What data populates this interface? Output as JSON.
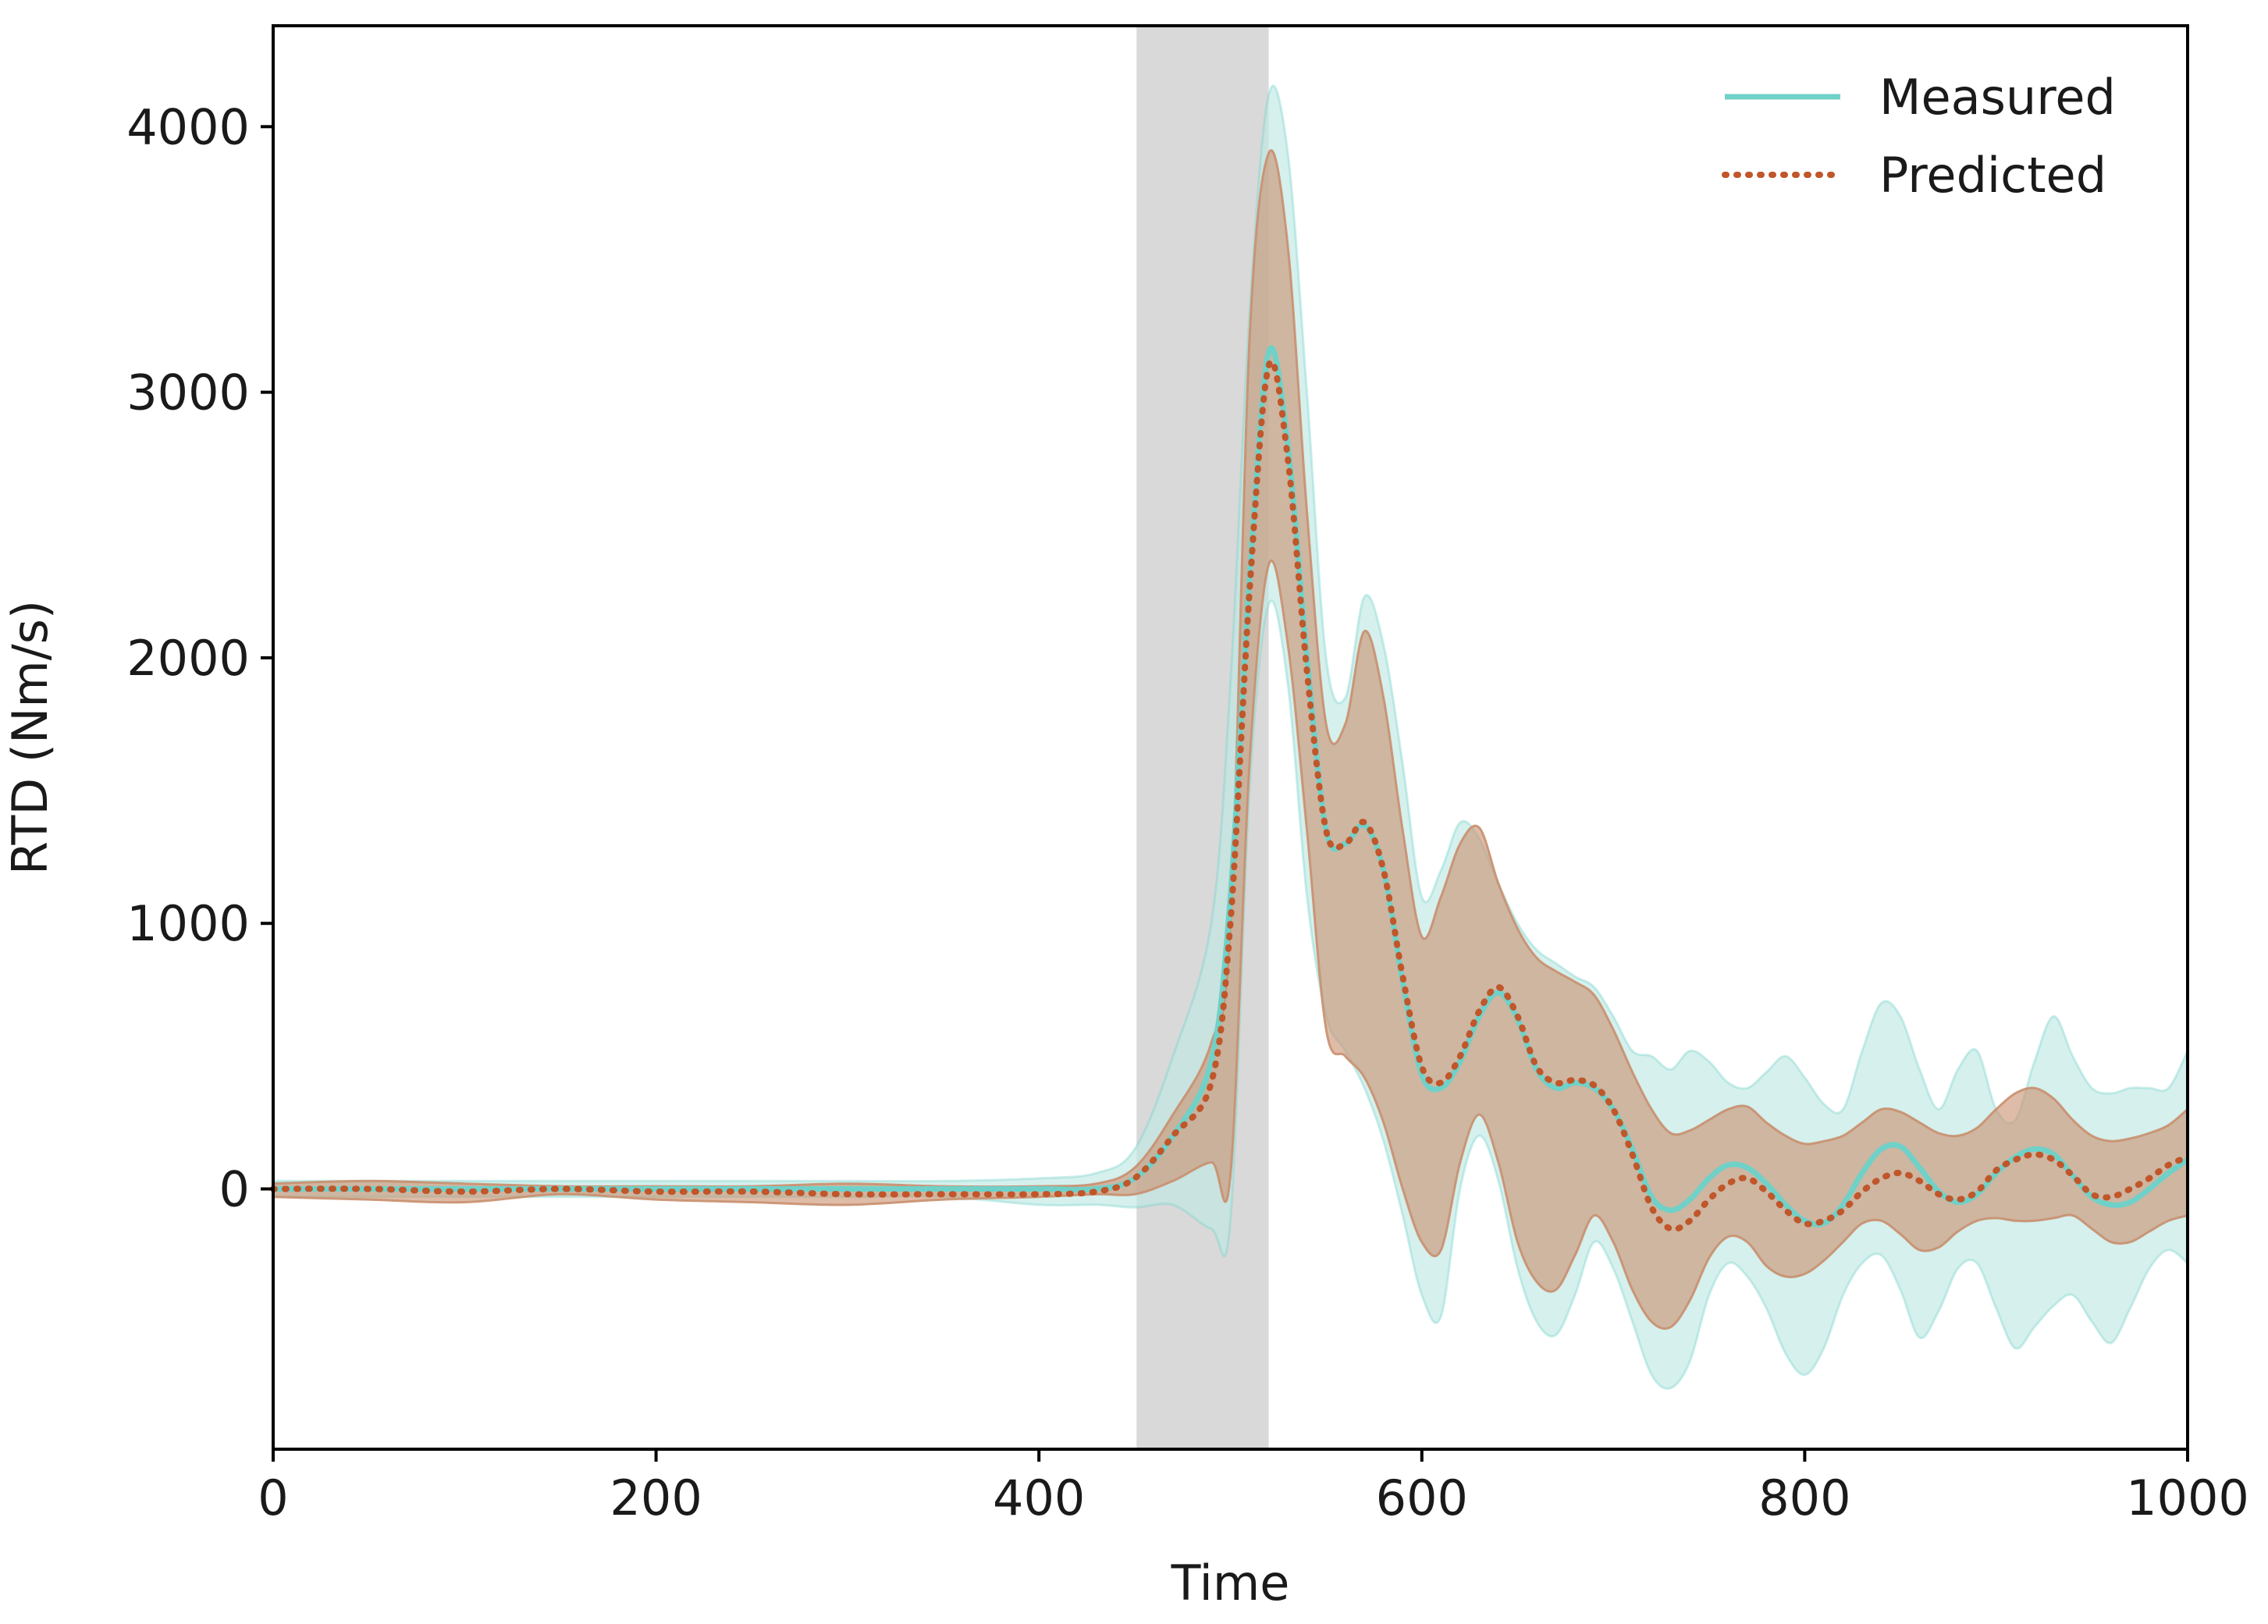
{
  "chart_data": {
    "type": "line",
    "title": "",
    "xlabel": "Time",
    "ylabel": "RTD (Nm/s)",
    "xlim": [
      0,
      1000
    ],
    "ylim": [
      -980,
      4380
    ],
    "xticks": [
      0,
      200,
      400,
      600,
      800,
      1000
    ],
    "yticks": [
      0,
      1000,
      2000,
      3000,
      4000
    ],
    "grid": false,
    "legend_position": "top-right",
    "shaded_span": {
      "x_start": 451,
      "x_end": 520,
      "color": "#d9d9d9"
    },
    "colors": {
      "measured": "#6fd1c8",
      "measured_band": "#bfe8e4",
      "predicted": "#c0562a",
      "predicted_band": "#c98f6e",
      "axes": "#000000"
    },
    "series": [
      {
        "name": "Measured",
        "style": "solid",
        "x": [
          0,
          50,
          100,
          150,
          200,
          250,
          300,
          350,
          400,
          430,
          450,
          470,
          490,
          500,
          510,
          520,
          530,
          540,
          550,
          560,
          570,
          580,
          590,
          600,
          610,
          620,
          630,
          640,
          650,
          660,
          670,
          680,
          690,
          700,
          710,
          720,
          730,
          740,
          750,
          760,
          770,
          780,
          790,
          800,
          810,
          820,
          830,
          840,
          850,
          860,
          870,
          880,
          890,
          900,
          910,
          920,
          930,
          940,
          950,
          960,
          970,
          980,
          990,
          1000
        ],
        "y": [
          0,
          0,
          0,
          0,
          0,
          0,
          0,
          0,
          0,
          0,
          40,
          200,
          480,
          1100,
          2300,
          3150,
          2800,
          2000,
          1350,
          1300,
          1370,
          1200,
          780,
          430,
          380,
          480,
          650,
          740,
          640,
          450,
          380,
          400,
          380,
          300,
          150,
          -30,
          -80,
          -40,
          40,
          90,
          80,
          20,
          -60,
          -120,
          -130,
          -60,
          60,
          150,
          160,
          80,
          -10,
          -50,
          -20,
          60,
          120,
          150,
          130,
          50,
          -30,
          -60,
          -50,
          0,
          60,
          110
        ],
        "band_upper": [
          30,
          30,
          30,
          30,
          30,
          30,
          30,
          30,
          40,
          60,
          150,
          500,
          1000,
          1900,
          3300,
          4120,
          3900,
          3000,
          2000,
          1850,
          2230,
          2050,
          1600,
          1100,
          1200,
          1380,
          1320,
          1150,
          1000,
          900,
          850,
          800,
          760,
          650,
          520,
          500,
          450,
          520,
          480,
          400,
          380,
          440,
          500,
          420,
          320,
          300,
          520,
          700,
          650,
          450,
          300,
          450,
          520,
          300,
          260,
          480,
          650,
          500,
          380,
          360,
          380,
          380,
          380,
          520
        ],
        "band_lower": [
          -30,
          -30,
          -30,
          -30,
          -30,
          -30,
          -30,
          -30,
          -60,
          -60,
          -70,
          -60,
          -150,
          -120,
          1500,
          2200,
          1900,
          1100,
          650,
          520,
          380,
          180,
          -100,
          -400,
          -480,
          0,
          200,
          30,
          -300,
          -500,
          -550,
          -400,
          -200,
          -300,
          -500,
          -700,
          -750,
          -650,
          -400,
          -280,
          -330,
          -450,
          -620,
          -700,
          -600,
          -400,
          -280,
          -250,
          -380,
          -560,
          -460,
          -300,
          -280,
          -450,
          -600,
          -520,
          -440,
          -400,
          -500,
          -580,
          -450,
          -300,
          -230,
          -280
        ]
      },
      {
        "name": "Predicted",
        "style": "dotted",
        "x": [
          0,
          50,
          100,
          150,
          200,
          250,
          300,
          350,
          400,
          430,
          450,
          470,
          490,
          500,
          510,
          520,
          530,
          540,
          550,
          560,
          570,
          580,
          590,
          600,
          610,
          620,
          630,
          640,
          650,
          660,
          670,
          680,
          690,
          700,
          710,
          720,
          730,
          740,
          750,
          760,
          770,
          780,
          790,
          800,
          810,
          820,
          830,
          840,
          850,
          860,
          870,
          880,
          890,
          900,
          910,
          920,
          930,
          940,
          950,
          960,
          970,
          980,
          990,
          1000
        ],
        "y": [
          0,
          0,
          -10,
          0,
          -10,
          -10,
          -20,
          -20,
          -20,
          -10,
          40,
          200,
          400,
          1000,
          2250,
          3100,
          2750,
          1950,
          1350,
          1300,
          1380,
          1200,
          800,
          460,
          400,
          500,
          670,
          760,
          650,
          460,
          400,
          410,
          390,
          300,
          130,
          -70,
          -150,
          -120,
          -40,
          20,
          40,
          -10,
          -80,
          -130,
          -120,
          -80,
          -10,
          40,
          60,
          30,
          -20,
          -40,
          -10,
          70,
          110,
          130,
          110,
          50,
          -20,
          -30,
          0,
          40,
          90,
          120
        ],
        "band_upper": [
          20,
          30,
          20,
          10,
          10,
          10,
          20,
          10,
          10,
          20,
          80,
          280,
          550,
          1000,
          3200,
          3900,
          3550,
          2550,
          1750,
          1750,
          2100,
          1850,
          1350,
          950,
          1100,
          1300,
          1360,
          1150,
          980,
          870,
          820,
          780,
          730,
          600,
          440,
          300,
          210,
          220,
          260,
          300,
          310,
          250,
          200,
          170,
          180,
          200,
          250,
          300,
          290,
          250,
          210,
          200,
          230,
          300,
          360,
          380,
          340,
          260,
          200,
          180,
          190,
          210,
          240,
          300
        ],
        "band_lower": [
          -30,
          -40,
          -50,
          -20,
          -40,
          -50,
          -60,
          -40,
          -30,
          -20,
          -20,
          30,
          100,
          50,
          1600,
          2350,
          2050,
          1350,
          600,
          500,
          420,
          250,
          0,
          -200,
          -230,
          100,
          280,
          100,
          -200,
          -350,
          -380,
          -250,
          -100,
          -200,
          -380,
          -500,
          -520,
          -420,
          -260,
          -180,
          -200,
          -290,
          -330,
          -320,
          -270,
          -200,
          -130,
          -120,
          -170,
          -230,
          -220,
          -160,
          -120,
          -110,
          -120,
          -120,
          -110,
          -100,
          -150,
          -200,
          -200,
          -160,
          -120,
          -100
        ]
      }
    ]
  }
}
